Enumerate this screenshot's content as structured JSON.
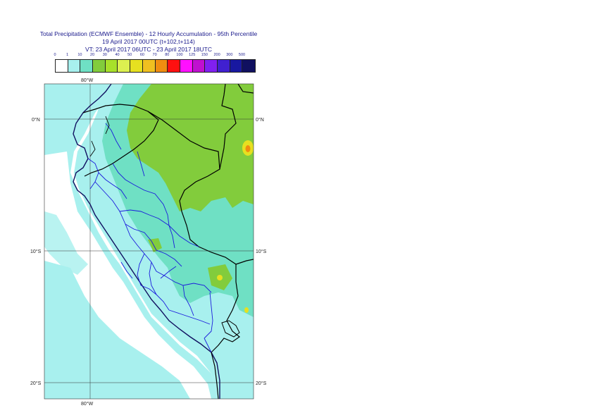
{
  "title": {
    "line1": "Total Precipitation (ECMWF Ensemble) - 12 Hourly Accumulation - 95th Percentile",
    "line2": "19 April 2017 00UTC (t+102,t+114)",
    "line3": "VT: 23 April 2017 06UTC - 23 April 2017 18UTC"
  },
  "legend": {
    "ticks": [
      "0",
      "1",
      "10",
      "20",
      "30",
      "40",
      "50",
      "60",
      "70",
      "80",
      "100",
      "125",
      "150",
      "200",
      "300",
      "500"
    ],
    "colors": [
      "#ffffff",
      "#a8f0ee",
      "#6fe0c4",
      "#82cc3c",
      "#a8e02a",
      "#dcf050",
      "#e6e020",
      "#f0c020",
      "#f08c10",
      "#ff1010",
      "#ff10ff",
      "#c010d0",
      "#8020f0",
      "#4020d0",
      "#1818a0",
      "#101060"
    ]
  },
  "map": {
    "lon_label_top": "80°W",
    "lon_label_bottom": "80°W",
    "lat_labels_left": [
      "0°N",
      "10°S",
      "20°S"
    ],
    "lat_labels_right": [
      "0°N",
      "10°S",
      "20°S"
    ],
    "ocean_color": "#ffffff",
    "light_band_color": "#a8f0ee",
    "mid_band_color": "#6fe0c4",
    "high_band_color": "#82cc3c",
    "peak_color": "#e6e020",
    "max_color": "#f08c10"
  }
}
